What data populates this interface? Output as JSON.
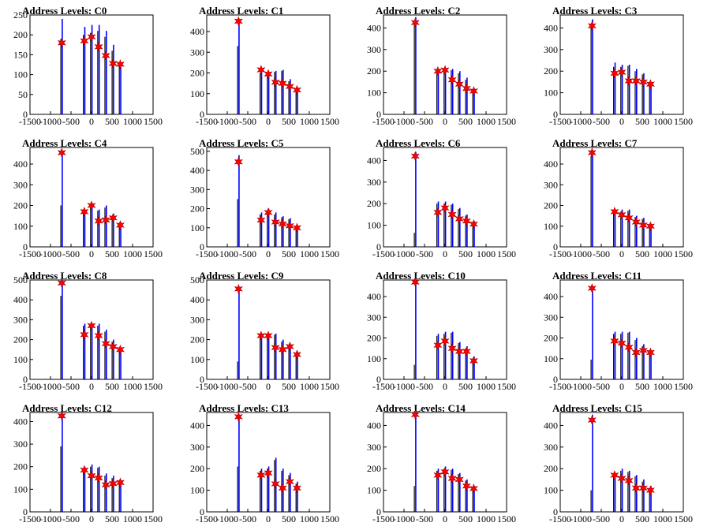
{
  "figure": {
    "background": "#ffffff",
    "series_color": "#0000ff",
    "secondary_color": "#000000",
    "marker_color": "#ff0000"
  },
  "chart_data": [
    {
      "type": "bar",
      "title": "Address Levels: C0",
      "xlim": [
        -1500,
        1500
      ],
      "ylim": [
        0,
        250
      ],
      "x": [
        -725,
        -175,
        0,
        175,
        350,
        525,
        700
      ],
      "bars_blue": [
        240,
        220,
        225,
        225,
        210,
        175,
        130
      ],
      "bars_black": [
        190,
        200,
        205,
        210,
        195,
        160,
        125
      ],
      "peaks": [
        180,
        185,
        195,
        170,
        148,
        128,
        126
      ]
    },
    {
      "type": "bar",
      "title": "Address Levels: C1",
      "xlim": [
        -1500,
        1500
      ],
      "ylim": [
        0,
        480
      ],
      "x": [
        -725,
        -175,
        0,
        175,
        350,
        525,
        700
      ],
      "bars_blue": [
        440,
        210,
        200,
        210,
        215,
        170,
        120
      ],
      "bars_black": [
        330,
        200,
        195,
        205,
        210,
        160,
        110
      ],
      "peaks": [
        450,
        215,
        195,
        155,
        150,
        135,
        118
      ]
    },
    {
      "type": "bar",
      "title": "Address Levels: C2",
      "xlim": [
        -1500,
        1500
      ],
      "ylim": [
        0,
        460
      ],
      "x": [
        -725,
        -175,
        0,
        175,
        350,
        525,
        700
      ],
      "bars_blue": [
        450,
        210,
        210,
        210,
        200,
        170,
        120
      ],
      "bars_black": [
        420,
        200,
        200,
        205,
        190,
        160,
        115
      ],
      "peaks": [
        425,
        200,
        205,
        160,
        140,
        120,
        108
      ]
    },
    {
      "type": "bar",
      "title": "Address Levels: C3",
      "xlim": [
        -1500,
        1500
      ],
      "ylim": [
        0,
        460
      ],
      "x": [
        -725,
        -175,
        0,
        175,
        350,
        525,
        700
      ],
      "bars_blue": [
        440,
        240,
        230,
        230,
        210,
        190,
        150
      ],
      "bars_black": [
        420,
        220,
        220,
        225,
        200,
        185,
        145
      ],
      "peaks": [
        410,
        190,
        195,
        155,
        155,
        150,
        140
      ]
    },
    {
      "type": "bar",
      "title": "Address Levels: C4",
      "xlim": [
        -1500,
        1500
      ],
      "ylim": [
        0,
        480
      ],
      "x": [
        -725,
        -175,
        0,
        175,
        350,
        525,
        700
      ],
      "bars_blue": [
        460,
        180,
        200,
        180,
        200,
        160,
        120
      ],
      "bars_black": [
        200,
        170,
        190,
        175,
        190,
        150,
        110
      ],
      "peaks": [
        455,
        170,
        200,
        125,
        130,
        140,
        105
      ]
    },
    {
      "type": "bar",
      "title": "Address Levels: C5",
      "xlim": [
        -1500,
        1500
      ],
      "ylim": [
        0,
        520
      ],
      "x": [
        -725,
        -175,
        0,
        175,
        350,
        525,
        700
      ],
      "bars_blue": [
        480,
        180,
        200,
        180,
        160,
        150,
        110
      ],
      "bars_black": [
        250,
        170,
        190,
        170,
        155,
        145,
        105
      ],
      "peaks": [
        445,
        140,
        180,
        130,
        120,
        110,
        100
      ]
    },
    {
      "type": "bar",
      "title": "Address Levels: C6",
      "xlim": [
        -1500,
        1500
      ],
      "ylim": [
        0,
        460
      ],
      "x": [
        -725,
        -175,
        0,
        175,
        350,
        525,
        700
      ],
      "bars_blue": [
        440,
        210,
        210,
        200,
        180,
        150,
        120
      ],
      "bars_black": [
        65,
        200,
        200,
        195,
        175,
        145,
        115
      ],
      "peaks": [
        420,
        160,
        180,
        150,
        130,
        120,
        105
      ]
    },
    {
      "type": "bar",
      "title": "Address Levels: C7",
      "xlim": [
        -1500,
        1500
      ],
      "ylim": [
        0,
        480
      ],
      "x": [
        -725,
        -175,
        0,
        175,
        350,
        525,
        700
      ],
      "bars_blue": [
        470,
        180,
        180,
        180,
        150,
        140,
        110
      ],
      "bars_black": [
        440,
        170,
        170,
        175,
        145,
        135,
        105
      ],
      "peaks": [
        455,
        170,
        155,
        140,
        120,
        105,
        100
      ]
    },
    {
      "type": "bar",
      "title": "Address Levels: C8",
      "xlim": [
        -1500,
        1500
      ],
      "ylim": [
        0,
        500
      ],
      "x": [
        -725,
        -175,
        0,
        175,
        350,
        525,
        700
      ],
      "bars_blue": [
        500,
        280,
        280,
        280,
        250,
        200,
        160
      ],
      "bars_black": [
        420,
        270,
        270,
        270,
        240,
        190,
        150
      ],
      "peaks": [
        485,
        225,
        270,
        220,
        180,
        165,
        150
      ]
    },
    {
      "type": "bar",
      "title": "Address Levels: C9",
      "xlim": [
        -1500,
        1500
      ],
      "ylim": [
        0,
        500
      ],
      "x": [
        -725,
        -175,
        0,
        175,
        350,
        525,
        700
      ],
      "bars_blue": [
        460,
        230,
        230,
        230,
        200,
        180,
        140
      ],
      "bars_black": [
        90,
        220,
        220,
        225,
        190,
        170,
        130
      ],
      "peaks": [
        455,
        220,
        220,
        160,
        150,
        165,
        125
      ]
    },
    {
      "type": "bar",
      "title": "Address Levels: C10",
      "xlim": [
        -1500,
        1500
      ],
      "ylim": [
        0,
        480
      ],
      "x": [
        -725,
        -175,
        0,
        175,
        350,
        525,
        700
      ],
      "bars_blue": [
        480,
        220,
        230,
        230,
        180,
        160,
        110
      ],
      "bars_black": [
        70,
        210,
        220,
        225,
        175,
        150,
        100
      ],
      "peaks": [
        470,
        165,
        185,
        150,
        135,
        135,
        90
      ]
    },
    {
      "type": "bar",
      "title": "Address Levels: C11",
      "xlim": [
        -1500,
        1500
      ],
      "ylim": [
        0,
        480
      ],
      "x": [
        -725,
        -175,
        0,
        175,
        350,
        525,
        700
      ],
      "bars_blue": [
        450,
        230,
        230,
        230,
        200,
        170,
        140
      ],
      "bars_black": [
        95,
        220,
        220,
        225,
        190,
        160,
        130
      ],
      "peaks": [
        440,
        185,
        175,
        155,
        130,
        140,
        130
      ]
    },
    {
      "type": "bar",
      "title": "Address Levels: C12",
      "xlim": [
        -1500,
        1500
      ],
      "ylim": [
        0,
        440
      ],
      "x": [
        -725,
        -175,
        0,
        175,
        350,
        525,
        700
      ],
      "bars_blue": [
        440,
        200,
        210,
        200,
        170,
        160,
        140
      ],
      "bars_black": [
        290,
        190,
        200,
        195,
        160,
        150,
        130
      ],
      "peaks": [
        425,
        185,
        160,
        150,
        120,
        125,
        130
      ]
    },
    {
      "type": "bar",
      "title": "Address Levels: C13",
      "xlim": [
        -1500,
        1500
      ],
      "ylim": [
        0,
        460
      ],
      "x": [
        -725,
        -175,
        0,
        175,
        350,
        525,
        700
      ],
      "bars_blue": [
        450,
        200,
        210,
        250,
        200,
        180,
        140
      ],
      "bars_black": [
        210,
        190,
        200,
        240,
        190,
        170,
        130
      ],
      "peaks": [
        440,
        170,
        180,
        130,
        110,
        140,
        110
      ]
    },
    {
      "type": "bar",
      "title": "Address Levels: C14",
      "xlim": [
        -1500,
        1500
      ],
      "ylim": [
        0,
        460
      ],
      "x": [
        -725,
        -175,
        0,
        175,
        350,
        525,
        700
      ],
      "bars_blue": [
        460,
        200,
        210,
        200,
        180,
        150,
        120
      ],
      "bars_black": [
        120,
        190,
        200,
        195,
        175,
        145,
        115
      ],
      "peaks": [
        450,
        170,
        185,
        155,
        150,
        120,
        108
      ]
    },
    {
      "type": "bar",
      "title": "Address Levels: C15",
      "xlim": [
        -1500,
        1500
      ],
      "ylim": [
        0,
        460
      ],
      "x": [
        -725,
        -175,
        0,
        175,
        350,
        525,
        700
      ],
      "bars_blue": [
        450,
        180,
        200,
        190,
        170,
        150,
        120
      ],
      "bars_black": [
        100,
        170,
        190,
        185,
        165,
        140,
        110
      ],
      "peaks": [
        425,
        170,
        155,
        145,
        110,
        110,
        100
      ]
    }
  ],
  "x_ticks": [
    "-1500",
    "-1000",
    "-500",
    "0",
    "500",
    "1000",
    "1500"
  ],
  "x_tick_values": [
    -1500,
    -1000,
    -500,
    0,
    500,
    1000,
    1500
  ]
}
